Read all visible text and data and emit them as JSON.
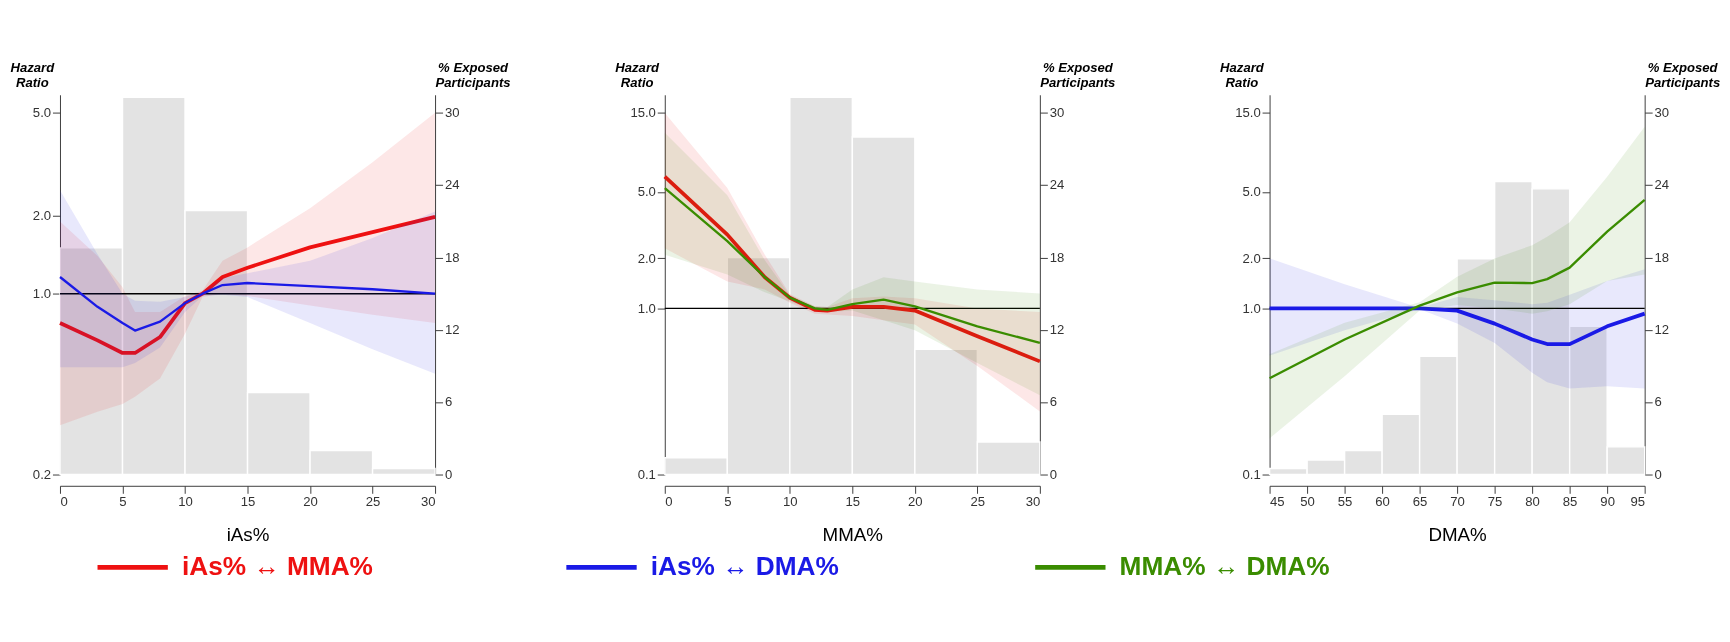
{
  "chart_data": [
    {
      "type": "line",
      "xlabel": "iAs%",
      "ylabel": "Hazard Ratio",
      "y2label": "% Exposed Participants",
      "log": "y",
      "xlim": [
        0,
        30
      ],
      "xticks": [
        0,
        5,
        10,
        15,
        20,
        25,
        30
      ],
      "ylim": [
        0.2,
        5.87
      ],
      "yticks": [
        {
          "value": 0.2,
          "label": "0.2"
        },
        {
          "value": 1,
          "label": "1.0"
        },
        {
          "value": 2,
          "label": "2.0"
        },
        {
          "value": 5,
          "label": "5.0"
        }
      ],
      "y2lim": [
        0,
        31.5
      ],
      "y2ticks": [
        0,
        6,
        12,
        18,
        24,
        30
      ],
      "grid": false,
      "legend": "bottom",
      "marker": "none",
      "line_style": "solid",
      "ref_lines": [
        {
          "axis": "y",
          "value": 1,
          "color": "#000000"
        }
      ],
      "series": [
        {
          "type": "histogram",
          "axis": "y2",
          "color": "#e3e3e3",
          "bins": [
            0,
            5,
            10,
            15,
            20,
            25,
            30
          ],
          "values": [
            18.8,
            31.3,
            21.9,
            6.8,
            2.0,
            0.5
          ]
        },
        {
          "name": "iAs% ↔ MMA%",
          "color": "#ee1111",
          "x": [
            0,
            3,
            5,
            6,
            8,
            10,
            11.4,
            13,
            15,
            20,
            25,
            30
          ],
          "values": [
            0.77,
            0.66,
            0.59,
            0.59,
            0.68,
            0.92,
            1.0,
            1.16,
            1.26,
            1.51,
            1.73,
            1.98
          ],
          "lower": [
            0.31,
            0.35,
            0.375,
            0.4,
            0.47,
            0.7,
            0.97,
            1.0,
            0.98,
            0.9,
            0.83,
            0.77
          ],
          "upper": [
            1.9,
            1.4,
            1.06,
            0.85,
            0.85,
            0.98,
            1.03,
            1.34,
            1.51,
            2.14,
            3.22,
            5.0
          ]
        },
        {
          "name": "iAs% ↔ DMA%",
          "color": "#1a1ae6",
          "x": [
            0,
            3,
            5,
            6,
            8,
            10,
            11.4,
            13,
            15,
            20,
            25,
            30
          ],
          "values": [
            1.16,
            0.89,
            0.77,
            0.72,
            0.78,
            0.92,
            1.0,
            1.08,
            1.1,
            1.07,
            1.04,
            1.0
          ],
          "lower": [
            0.52,
            0.52,
            0.52,
            0.54,
            0.62,
            0.85,
            0.98,
            0.99,
            0.97,
            0.77,
            0.61,
            0.49
          ],
          "upper": [
            2.51,
            1.42,
            1.0,
            0.94,
            0.93,
            0.97,
            1.02,
            1.15,
            1.2,
            1.34,
            1.64,
            2.08
          ]
        }
      ]
    },
    {
      "type": "line",
      "xlabel": "MMA%",
      "ylabel": "Hazard Ratio",
      "y2label": "% Exposed Participants",
      "log": "y",
      "xlim": [
        0,
        30
      ],
      "xticks": [
        0,
        5,
        10,
        15,
        20,
        25,
        30
      ],
      "ylim": [
        0.1,
        19.3
      ],
      "yticks": [
        {
          "value": 0.1,
          "label": "0.1"
        },
        {
          "value": 1,
          "label": "1.0"
        },
        {
          "value": 2,
          "label": "2.0"
        },
        {
          "value": 5,
          "label": "5.0"
        },
        {
          "value": 15,
          "label": "15.0"
        }
      ],
      "y2lim": [
        0,
        31.5
      ],
      "y2ticks": [
        0,
        6,
        12,
        18,
        24,
        30
      ],
      "grid": false,
      "legend": "bottom",
      "marker": "none",
      "line_style": "solid",
      "ref_lines": [
        {
          "axis": "y",
          "value": 1,
          "color": "#000000"
        }
      ],
      "series": [
        {
          "type": "histogram",
          "axis": "y2",
          "color": "#e3e3e3",
          "bins": [
            0,
            5,
            10,
            15,
            20,
            25,
            30
          ],
          "values": [
            1.4,
            18.0,
            31.3,
            28.0,
            10.4,
            2.7
          ]
        },
        {
          "name": "iAs% ↔ MMA%",
          "color": "#ee1111",
          "x": [
            0,
            5,
            8,
            10,
            12,
            13,
            15,
            17.5,
            20,
            25,
            30
          ],
          "values": [
            6.2,
            2.78,
            1.54,
            1.16,
            0.98,
            0.97,
            1.02,
            1.02,
            0.97,
            0.68,
            0.48
          ],
          "lower": [
            2.3,
            1.45,
            1.3,
            1.08,
            0.93,
            0.92,
            0.9,
            0.85,
            0.8,
            0.45,
            0.24
          ],
          "upper": [
            15,
            5.3,
            2.1,
            1.22,
            1.03,
            1.02,
            1.15,
            1.18,
            1.15,
            1.0,
            0.95
          ]
        },
        {
          "name": "MMA% ↔ DMA%",
          "color": "#3a8c00",
          "x": [
            0,
            5,
            8,
            10,
            12,
            13,
            15,
            17.5,
            20,
            25,
            30
          ],
          "values": [
            5.3,
            2.54,
            1.54,
            1.16,
            1.0,
            0.98,
            1.06,
            1.13,
            1.03,
            0.78,
            0.62
          ],
          "lower": [
            2.1,
            1.6,
            1.25,
            1.1,
            0.96,
            0.95,
            0.97,
            0.85,
            0.74,
            0.47,
            0.3
          ],
          "upper": [
            11.4,
            4.8,
            1.95,
            1.2,
            1.03,
            1.02,
            1.3,
            1.54,
            1.45,
            1.3,
            1.23
          ]
        }
      ]
    },
    {
      "type": "line",
      "xlabel": "DMA%",
      "ylabel": "Hazard Ratio",
      "y2label": "% Exposed Participants",
      "log": "y",
      "xlim": [
        45,
        95
      ],
      "xticks": [
        45,
        50,
        55,
        60,
        65,
        70,
        75,
        80,
        85,
        90,
        95
      ],
      "ylim": [
        0.1,
        19.3
      ],
      "yticks": [
        {
          "value": 0.1,
          "label": "0.1"
        },
        {
          "value": 1,
          "label": "1.0"
        },
        {
          "value": 2,
          "label": "2.0"
        },
        {
          "value": 5,
          "label": "5.0"
        },
        {
          "value": 15,
          "label": "15.0"
        }
      ],
      "y2lim": [
        0,
        31.5
      ],
      "y2ticks": [
        0,
        6,
        12,
        18,
        24,
        30
      ],
      "grid": false,
      "legend": "bottom",
      "marker": "none",
      "line_style": "solid",
      "ref_lines": [
        {
          "axis": "y",
          "value": 1,
          "color": "#000000"
        }
      ],
      "series": [
        {
          "type": "histogram",
          "axis": "y2",
          "color": "#e3e3e3",
          "bins": [
            45,
            50,
            55,
            60,
            65,
            70,
            75,
            80,
            85,
            90,
            95
          ],
          "values": [
            0.5,
            1.2,
            2.0,
            5.0,
            9.8,
            17.9,
            24.3,
            23.7,
            12.3,
            2.3
          ]
        },
        {
          "name": "iAs% ↔ DMA%",
          "color": "#1a1ae6",
          "x": [
            45,
            55,
            65,
            70,
            75,
            80,
            82,
            85,
            90,
            95
          ],
          "values": [
            1.0,
            1.0,
            1.0,
            0.97,
            0.81,
            0.65,
            0.61,
            0.61,
            0.78,
            0.93
          ],
          "lower": [
            0.52,
            0.74,
            0.99,
            0.81,
            0.62,
            0.41,
            0.36,
            0.33,
            0.34,
            0.33
          ],
          "upper": [
            2.0,
            1.4,
            1.01,
            1.17,
            1.12,
            1.06,
            1.08,
            1.21,
            1.46,
            1.72
          ]
        },
        {
          "name": "MMA% ↔ DMA%",
          "color": "#3a8c00",
          "x": [
            45,
            55,
            65,
            70,
            75,
            80,
            82,
            85,
            90,
            95
          ],
          "values": [
            0.38,
            0.65,
            1.04,
            1.25,
            1.43,
            1.42,
            1.5,
            1.76,
            2.9,
            4.5
          ],
          "lower": [
            0.165,
            0.39,
            0.97,
            1.05,
            1.0,
            0.93,
            0.96,
            1.06,
            1.46,
            1.6
          ],
          "upper": [
            0.53,
            0.82,
            1.09,
            1.55,
            2.0,
            2.4,
            2.7,
            3.3,
            6.2,
            12.4
          ]
        }
      ]
    }
  ]
}
